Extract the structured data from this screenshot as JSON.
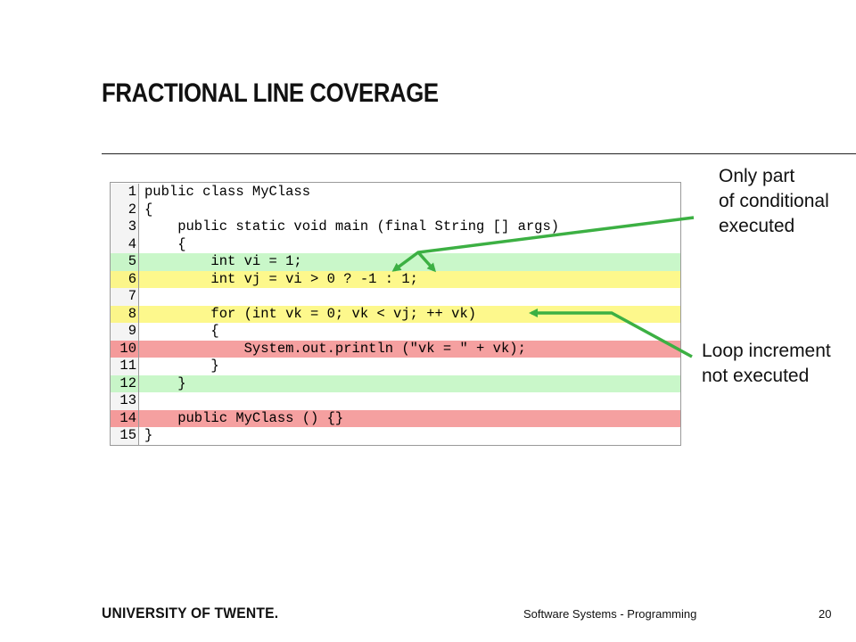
{
  "slide": {
    "title": "FRACTIONAL LINE COVERAGE",
    "page_number": "20",
    "course": "Software Systems - Programming",
    "university": "UNIVERSITY OF TWENTE."
  },
  "code": {
    "lines": [
      {
        "num": "1",
        "text": "public class MyClass",
        "coverage": "none"
      },
      {
        "num": "2",
        "text": "{",
        "coverage": "none"
      },
      {
        "num": "3",
        "text": "    public static void main (final String [] args)",
        "coverage": "none"
      },
      {
        "num": "4",
        "text": "    {",
        "coverage": "none"
      },
      {
        "num": "5",
        "text": "        int vi = 1;",
        "coverage": "covered"
      },
      {
        "num": "6",
        "text": "        int vj = vi > 0 ? -1 : 1;",
        "coverage": "partial"
      },
      {
        "num": "7",
        "text": "",
        "coverage": "none"
      },
      {
        "num": "8",
        "text": "        for (int vk = 0; vk < vj; ++ vk)",
        "coverage": "partial"
      },
      {
        "num": "9",
        "text": "        {",
        "coverage": "none"
      },
      {
        "num": "10",
        "text": "            System.out.println (\"vk = \" + vk);",
        "coverage": "missed"
      },
      {
        "num": "11",
        "text": "        }",
        "coverage": "none"
      },
      {
        "num": "12",
        "text": "    }",
        "coverage": "covered"
      },
      {
        "num": "13",
        "text": "",
        "coverage": "none"
      },
      {
        "num": "14",
        "text": "    public MyClass () {}",
        "coverage": "missed"
      },
      {
        "num": "15",
        "text": "}",
        "coverage": "none"
      }
    ]
  },
  "callouts": {
    "conditional": [
      "Only part",
      "of conditional",
      "executed"
    ],
    "loop": [
      "Loop increment",
      "not executed"
    ]
  },
  "colors": {
    "covered": "#c9f7c9",
    "partial": "#fdf88c",
    "missed": "#f5a0a0",
    "arrow": "#3cb043"
  }
}
